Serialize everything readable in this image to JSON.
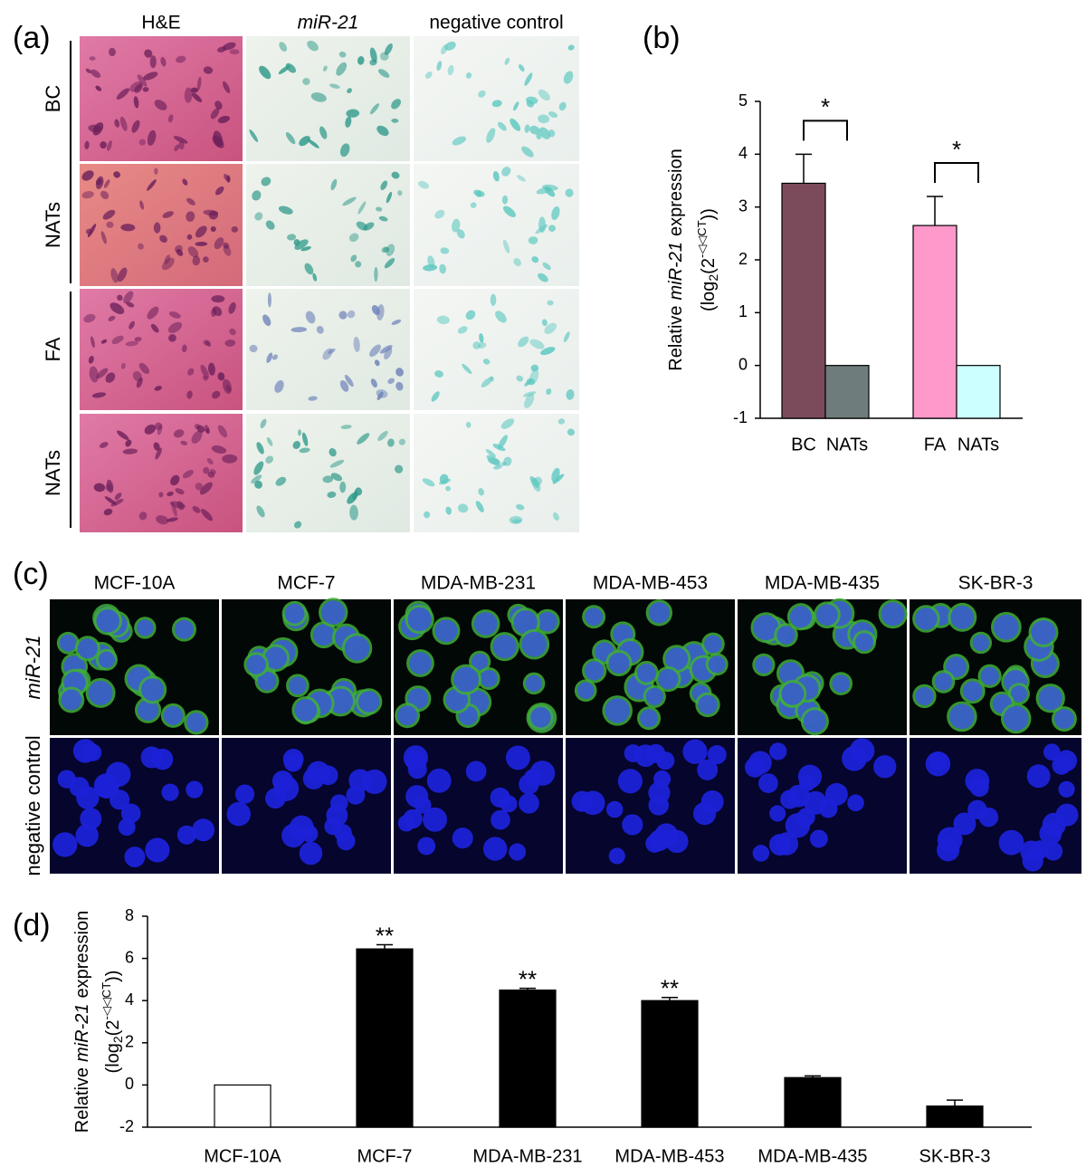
{
  "panel_a": {
    "label": "(a)",
    "columns": [
      "H&E",
      "miR-21",
      "negative control"
    ],
    "rows": [
      "BC",
      "NATs",
      "FA",
      "NATs"
    ]
  },
  "panel_c": {
    "label": "(c)",
    "columns": [
      "MCF-10A",
      "MCF-7",
      "MDA-MB-231",
      "MDA-MB-453",
      "MDA-MB-435",
      "SK-BR-3"
    ],
    "rows": [
      "miR-21",
      "negative control"
    ]
  },
  "chart_data": [
    {
      "type": "bar",
      "panel_label": "(b)",
      "categories": [
        "BC",
        "NATs",
        "FA",
        "NATs"
      ],
      "values": [
        3.45,
        0,
        2.65,
        0
      ],
      "errors": [
        0.55,
        null,
        0.55,
        null
      ],
      "colors": [
        "#7b4b5c",
        "#6f7c7c",
        "#ff99cc",
        "#ccffff"
      ],
      "ylim": [
        -1,
        5
      ],
      "yticks": [
        -1,
        0,
        1,
        2,
        3,
        4,
        5
      ],
      "ylabel": [
        "Relative",
        "miR-21",
        "expression"
      ],
      "ylabel_unit": [
        "(log",
        "2",
        "(2",
        "-◁◁CT",
        "))"
      ],
      "annotations": [
        "*",
        "*"
      ]
    },
    {
      "type": "bar",
      "panel_label": "(d)",
      "categories": [
        "MCF-10A",
        "MCF-7",
        "MDA-MB-231",
        "MDA-MB-453",
        "MDA-MB-435",
        "SK-BR-3"
      ],
      "values": [
        0,
        6.45,
        4.5,
        4.0,
        0.35,
        -1.0
      ],
      "errors": [
        null,
        0.2,
        0.08,
        0.15,
        0.08,
        0.28
      ],
      "colors": [
        "#ffffff",
        "#000000",
        "#000000",
        "#000000",
        "#000000",
        "#000000"
      ],
      "ylim": [
        -2,
        8
      ],
      "yticks": [
        -2,
        0,
        2,
        4,
        6,
        8
      ],
      "ylabel": [
        "Relative",
        "miR-21",
        "expression"
      ],
      "ylabel_unit": [
        "(log",
        "2",
        "(2",
        "-◁◁CT",
        "))"
      ],
      "annotations": [
        null,
        "**",
        "**",
        "**",
        null,
        null
      ]
    }
  ]
}
